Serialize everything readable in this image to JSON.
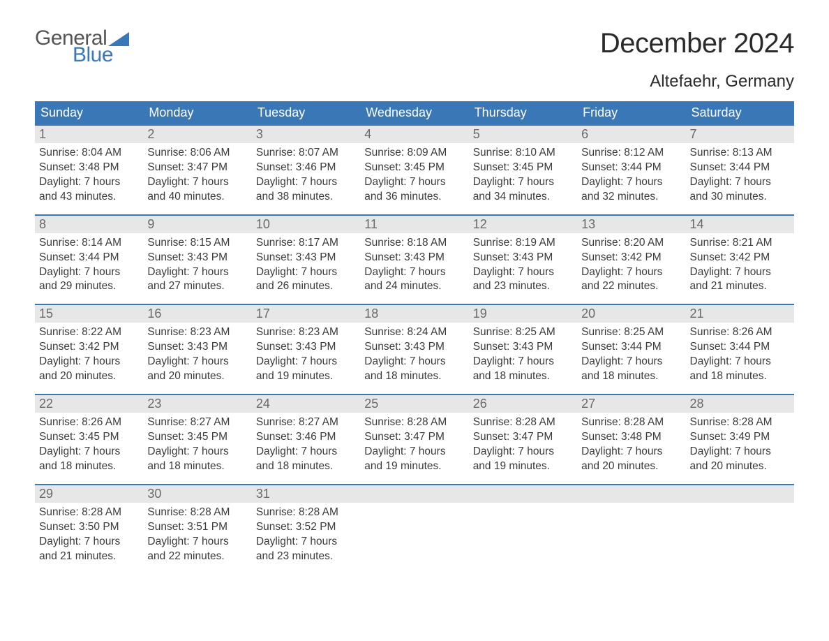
{
  "brand": {
    "word1": "General",
    "word2": "Blue",
    "accent_color": "#3a77b7",
    "text_color": "#555555"
  },
  "title": "December 2024",
  "location": "Altefaehr, Germany",
  "colors": {
    "header_bg": "#3a77b7",
    "header_text": "#ffffff",
    "daynum_bg": "#e7e7e7",
    "daynum_text": "#6a6a6a",
    "body_text": "#3b3b3b",
    "week_border": "#3a77b7",
    "page_bg": "#ffffff"
  },
  "weekdays": [
    "Sunday",
    "Monday",
    "Tuesday",
    "Wednesday",
    "Thursday",
    "Friday",
    "Saturday"
  ],
  "weeks": [
    [
      {
        "n": "1",
        "sunrise": "8:04 AM",
        "sunset": "3:48 PM",
        "daylight1": "Daylight: 7 hours",
        "daylight2": "and 43 minutes."
      },
      {
        "n": "2",
        "sunrise": "8:06 AM",
        "sunset": "3:47 PM",
        "daylight1": "Daylight: 7 hours",
        "daylight2": "and 40 minutes."
      },
      {
        "n": "3",
        "sunrise": "8:07 AM",
        "sunset": "3:46 PM",
        "daylight1": "Daylight: 7 hours",
        "daylight2": "and 38 minutes."
      },
      {
        "n": "4",
        "sunrise": "8:09 AM",
        "sunset": "3:45 PM",
        "daylight1": "Daylight: 7 hours",
        "daylight2": "and 36 minutes."
      },
      {
        "n": "5",
        "sunrise": "8:10 AM",
        "sunset": "3:45 PM",
        "daylight1": "Daylight: 7 hours",
        "daylight2": "and 34 minutes."
      },
      {
        "n": "6",
        "sunrise": "8:12 AM",
        "sunset": "3:44 PM",
        "daylight1": "Daylight: 7 hours",
        "daylight2": "and 32 minutes."
      },
      {
        "n": "7",
        "sunrise": "8:13 AM",
        "sunset": "3:44 PM",
        "daylight1": "Daylight: 7 hours",
        "daylight2": "and 30 minutes."
      }
    ],
    [
      {
        "n": "8",
        "sunrise": "8:14 AM",
        "sunset": "3:44 PM",
        "daylight1": "Daylight: 7 hours",
        "daylight2": "and 29 minutes."
      },
      {
        "n": "9",
        "sunrise": "8:15 AM",
        "sunset": "3:43 PM",
        "daylight1": "Daylight: 7 hours",
        "daylight2": "and 27 minutes."
      },
      {
        "n": "10",
        "sunrise": "8:17 AM",
        "sunset": "3:43 PM",
        "daylight1": "Daylight: 7 hours",
        "daylight2": "and 26 minutes."
      },
      {
        "n": "11",
        "sunrise": "8:18 AM",
        "sunset": "3:43 PM",
        "daylight1": "Daylight: 7 hours",
        "daylight2": "and 24 minutes."
      },
      {
        "n": "12",
        "sunrise": "8:19 AM",
        "sunset": "3:43 PM",
        "daylight1": "Daylight: 7 hours",
        "daylight2": "and 23 minutes."
      },
      {
        "n": "13",
        "sunrise": "8:20 AM",
        "sunset": "3:42 PM",
        "daylight1": "Daylight: 7 hours",
        "daylight2": "and 22 minutes."
      },
      {
        "n": "14",
        "sunrise": "8:21 AM",
        "sunset": "3:42 PM",
        "daylight1": "Daylight: 7 hours",
        "daylight2": "and 21 minutes."
      }
    ],
    [
      {
        "n": "15",
        "sunrise": "8:22 AM",
        "sunset": "3:42 PM",
        "daylight1": "Daylight: 7 hours",
        "daylight2": "and 20 minutes."
      },
      {
        "n": "16",
        "sunrise": "8:23 AM",
        "sunset": "3:43 PM",
        "daylight1": "Daylight: 7 hours",
        "daylight2": "and 20 minutes."
      },
      {
        "n": "17",
        "sunrise": "8:23 AM",
        "sunset": "3:43 PM",
        "daylight1": "Daylight: 7 hours",
        "daylight2": "and 19 minutes."
      },
      {
        "n": "18",
        "sunrise": "8:24 AM",
        "sunset": "3:43 PM",
        "daylight1": "Daylight: 7 hours",
        "daylight2": "and 18 minutes."
      },
      {
        "n": "19",
        "sunrise": "8:25 AM",
        "sunset": "3:43 PM",
        "daylight1": "Daylight: 7 hours",
        "daylight2": "and 18 minutes."
      },
      {
        "n": "20",
        "sunrise": "8:25 AM",
        "sunset": "3:44 PM",
        "daylight1": "Daylight: 7 hours",
        "daylight2": "and 18 minutes."
      },
      {
        "n": "21",
        "sunrise": "8:26 AM",
        "sunset": "3:44 PM",
        "daylight1": "Daylight: 7 hours",
        "daylight2": "and 18 minutes."
      }
    ],
    [
      {
        "n": "22",
        "sunrise": "8:26 AM",
        "sunset": "3:45 PM",
        "daylight1": "Daylight: 7 hours",
        "daylight2": "and 18 minutes."
      },
      {
        "n": "23",
        "sunrise": "8:27 AM",
        "sunset": "3:45 PM",
        "daylight1": "Daylight: 7 hours",
        "daylight2": "and 18 minutes."
      },
      {
        "n": "24",
        "sunrise": "8:27 AM",
        "sunset": "3:46 PM",
        "daylight1": "Daylight: 7 hours",
        "daylight2": "and 18 minutes."
      },
      {
        "n": "25",
        "sunrise": "8:28 AM",
        "sunset": "3:47 PM",
        "daylight1": "Daylight: 7 hours",
        "daylight2": "and 19 minutes."
      },
      {
        "n": "26",
        "sunrise": "8:28 AM",
        "sunset": "3:47 PM",
        "daylight1": "Daylight: 7 hours",
        "daylight2": "and 19 minutes."
      },
      {
        "n": "27",
        "sunrise": "8:28 AM",
        "sunset": "3:48 PM",
        "daylight1": "Daylight: 7 hours",
        "daylight2": "and 20 minutes."
      },
      {
        "n": "28",
        "sunrise": "8:28 AM",
        "sunset": "3:49 PM",
        "daylight1": "Daylight: 7 hours",
        "daylight2": "and 20 minutes."
      }
    ],
    [
      {
        "n": "29",
        "sunrise": "8:28 AM",
        "sunset": "3:50 PM",
        "daylight1": "Daylight: 7 hours",
        "daylight2": "and 21 minutes."
      },
      {
        "n": "30",
        "sunrise": "8:28 AM",
        "sunset": "3:51 PM",
        "daylight1": "Daylight: 7 hours",
        "daylight2": "and 22 minutes."
      },
      {
        "n": "31",
        "sunrise": "8:28 AM",
        "sunset": "3:52 PM",
        "daylight1": "Daylight: 7 hours",
        "daylight2": "and 23 minutes."
      },
      null,
      null,
      null,
      null
    ]
  ],
  "labels": {
    "sunrise": "Sunrise: ",
    "sunset": "Sunset: "
  }
}
